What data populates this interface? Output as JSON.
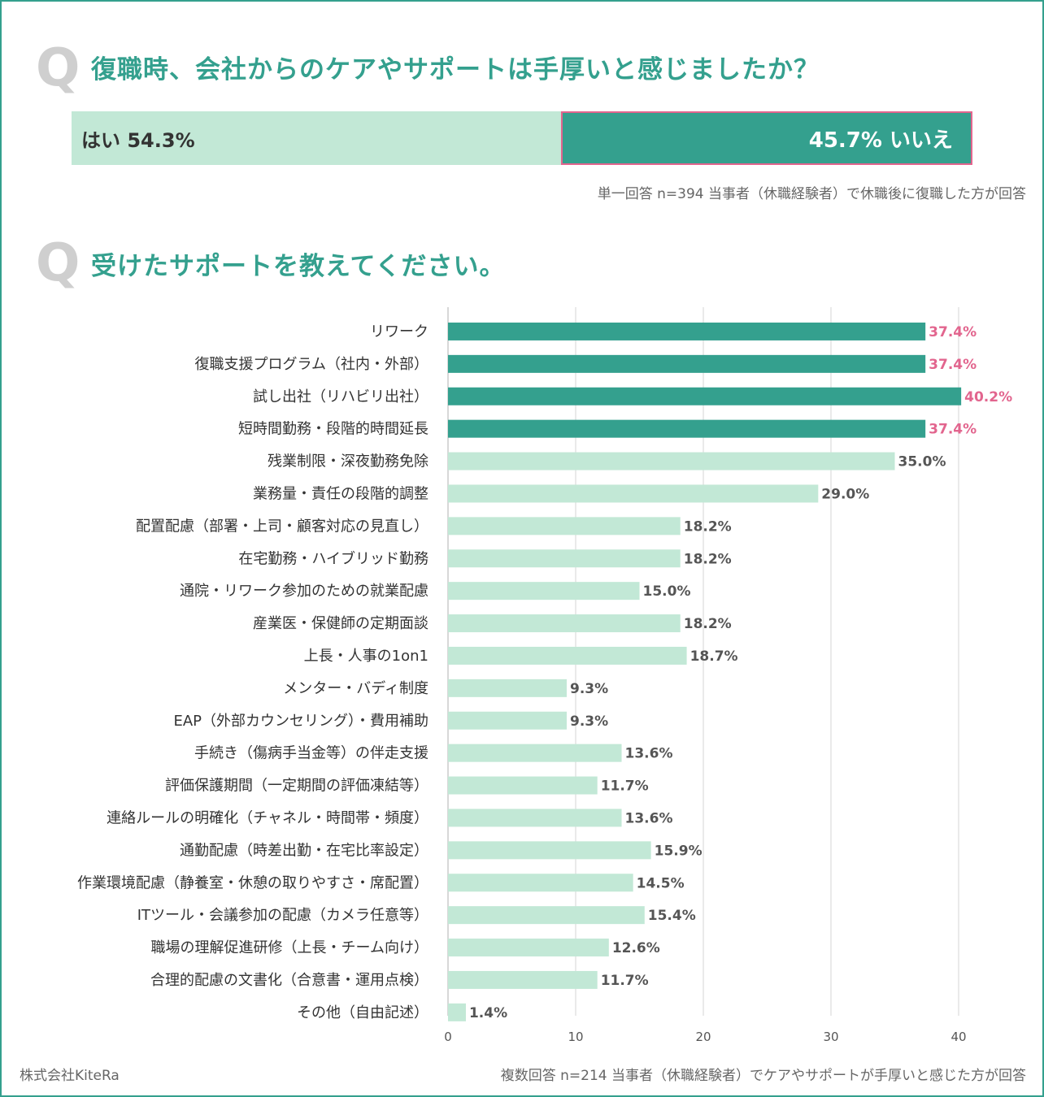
{
  "q1": {
    "mark": "Q",
    "question": "復職時、会社からのケアやサポートは手厚いと感じましたか？",
    "yes_label": "はい 54.3%",
    "no_label": "45.7% いいえ",
    "yes_value": 54.3,
    "no_value": 45.7,
    "note": "単一回答 n=394 当事者（休職経験者）で休職後に復職した方が回答"
  },
  "q2": {
    "mark": "Q",
    "question": "受けたサポートを教えてください。",
    "note": "複数回答 n=214 当事者（休職経験者）でケアやサポートが手厚いと感じた方が回答"
  },
  "footer": {
    "company": "株式会社KiteRa"
  },
  "colors": {
    "accent": "#34a08e",
    "light": "#c2e8d6",
    "highlight": "#e2658e",
    "frame": "#34a08e"
  },
  "chart_data": {
    "type": "bar",
    "orientation": "horizontal",
    "title": "受けたサポートを教えてください。",
    "xlim": [
      0,
      40
    ],
    "xticks": [
      0,
      10,
      20,
      30,
      40
    ],
    "grid": true,
    "highlight_top": 4,
    "categories": [
      "リワーク",
      "復職支援プログラム（社内・外部）",
      "試し出社（リハビリ出社）",
      "短時間勤務・段階的時間延長",
      "残業制限・深夜勤務免除",
      "業務量・責任の段階的調整",
      "配置配慮（部署・上司・顧客対応の見直し）",
      "在宅勤務・ハイブリッド勤務",
      "通院・リワーク参加のための就業配慮",
      "産業医・保健師の定期面談",
      "上長・人事の1on1",
      "メンター・バディ制度",
      "EAP（外部カウンセリング）・費用補助",
      "手続き（傷病手当金等）の伴走支援",
      "評価保護期間（一定期間の評価凍結等）",
      "連絡ルールの明確化（チャネル・時間帯・頻度）",
      "通勤配慮（時差出勤・在宅比率設定）",
      "作業環境配慮（静養室・休憩の取りやすさ・席配置）",
      "ITツール・会議参加の配慮（カメラ任意等）",
      "職場の理解促進研修（上長・チーム向け）",
      "合理的配慮の文書化（合意書・運用点検）",
      "その他（自由記述）"
    ],
    "values": [
      37.4,
      37.4,
      40.2,
      37.4,
      35.0,
      29.0,
      18.2,
      18.2,
      15.0,
      18.2,
      18.7,
      9.3,
      9.3,
      13.6,
      11.7,
      13.6,
      15.9,
      14.5,
      15.4,
      12.6,
      11.7,
      1.4
    ],
    "value_labels": [
      "37.4%",
      "37.4%",
      "40.2%",
      "37.4%",
      "35.0%",
      "29.0%",
      "18.2%",
      "18.2%",
      "15.0%",
      "18.2%",
      "18.7%",
      "9.3%",
      "9.3%",
      "13.6%",
      "11.7%",
      "13.6%",
      "15.9%",
      "14.5%",
      "15.4%",
      "12.6%",
      "11.7%",
      "1.4%"
    ]
  }
}
